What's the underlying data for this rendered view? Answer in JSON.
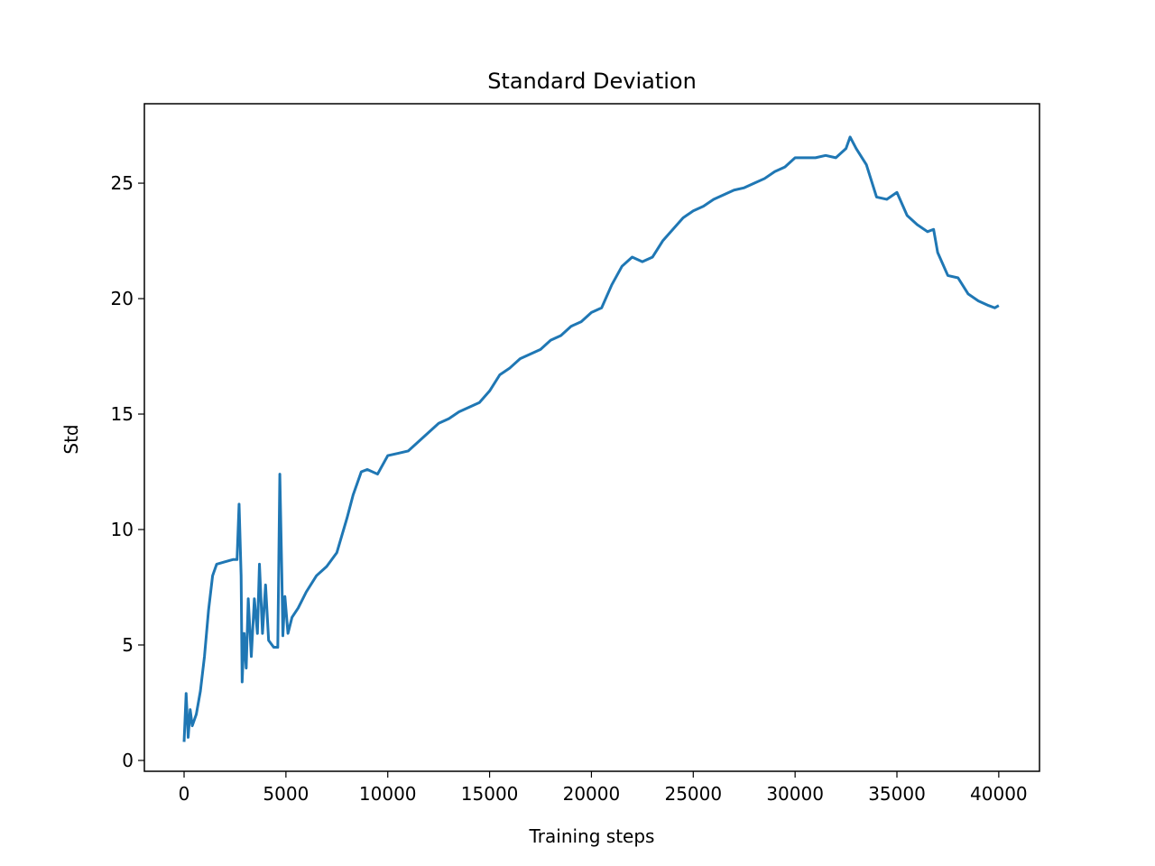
{
  "chart_data": {
    "type": "line",
    "title": "Standard Deviation",
    "x_label": "Training steps",
    "y_label": "Std",
    "color": "#1f77b4",
    "x": [
      0,
      100,
      200,
      300,
      400,
      600,
      800,
      1000,
      1200,
      1400,
      1600,
      2000,
      2400,
      2600,
      2700,
      2800,
      2850,
      2950,
      3050,
      3150,
      3300,
      3450,
      3600,
      3700,
      3850,
      4000,
      4150,
      4400,
      4600,
      4700,
      4800,
      4850,
      4950,
      5100,
      5300,
      5600,
      6000,
      6500,
      7000,
      7500,
      8000,
      8300,
      8700,
      9000,
      9500,
      10000,
      10500,
      11000,
      11500,
      12000,
      12500,
      13000,
      13500,
      14000,
      14500,
      15000,
      15500,
      16000,
      16500,
      17000,
      17500,
      18000,
      18500,
      19000,
      19500,
      20000,
      20500,
      21000,
      21500,
      22000,
      22500,
      23000,
      23500,
      24000,
      24500,
      25000,
      25500,
      26000,
      26500,
      27000,
      27500,
      28000,
      28500,
      29000,
      29500,
      30000,
      30500,
      31000,
      31500,
      32000,
      32500,
      32700,
      33000,
      33500,
      34000,
      34500,
      35000,
      35500,
      36000,
      36500,
      36800,
      37000,
      37500,
      38000,
      38500,
      39000,
      39500,
      39800,
      40000
    ],
    "values": [
      0.8,
      2.9,
      1.0,
      2.2,
      1.5,
      2.0,
      3.0,
      4.5,
      6.5,
      8.0,
      8.5,
      8.6,
      8.7,
      8.7,
      11.1,
      8.0,
      3.4,
      5.5,
      4.0,
      7.0,
      4.5,
      7.0,
      5.5,
      8.5,
      5.5,
      7.6,
      5.2,
      4.9,
      4.9,
      12.4,
      8.0,
      5.4,
      7.1,
      5.5,
      6.2,
      6.6,
      7.3,
      8.0,
      8.4,
      9.0,
      10.5,
      11.5,
      12.5,
      12.6,
      12.4,
      13.2,
      13.3,
      13.4,
      13.8,
      14.2,
      14.6,
      14.8,
      15.1,
      15.3,
      15.5,
      16.0,
      16.7,
      17.0,
      17.4,
      17.6,
      17.8,
      18.2,
      18.4,
      18.8,
      19.0,
      19.4,
      19.6,
      20.6,
      21.4,
      21.8,
      21.6,
      21.8,
      22.5,
      23.0,
      23.5,
      23.8,
      24.0,
      24.3,
      24.5,
      24.7,
      24.8,
      25.0,
      25.2,
      25.5,
      25.7,
      26.1,
      26.1,
      26.1,
      26.2,
      26.1,
      26.5,
      27.0,
      26.5,
      25.8,
      24.4,
      24.3,
      24.6,
      23.6,
      23.2,
      22.9,
      23.0,
      22.0,
      21.0,
      20.9,
      20.2,
      19.9,
      19.7,
      19.6,
      19.7
    ],
    "xlim": [
      -1950,
      42000
    ],
    "xticks": [
      0,
      5000,
      10000,
      15000,
      20000,
      25000,
      30000,
      35000,
      40000
    ],
    "ylim": [
      -0.47,
      28.44
    ],
    "yticks": [
      0,
      5,
      10,
      15,
      20,
      25
    ]
  }
}
